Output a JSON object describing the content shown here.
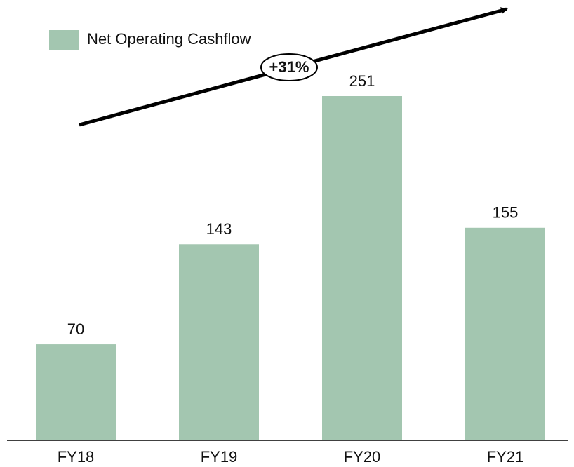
{
  "chart_data": {
    "type": "bar",
    "categories": [
      "FY18",
      "FY19",
      "FY20",
      "FY21"
    ],
    "series": [
      {
        "name": "Net Operating Cashflow",
        "color": "#a3c6b0",
        "values": [
          70,
          143,
          251,
          155
        ]
      }
    ],
    "annotation": "+31%",
    "legend": "top-left"
  }
}
